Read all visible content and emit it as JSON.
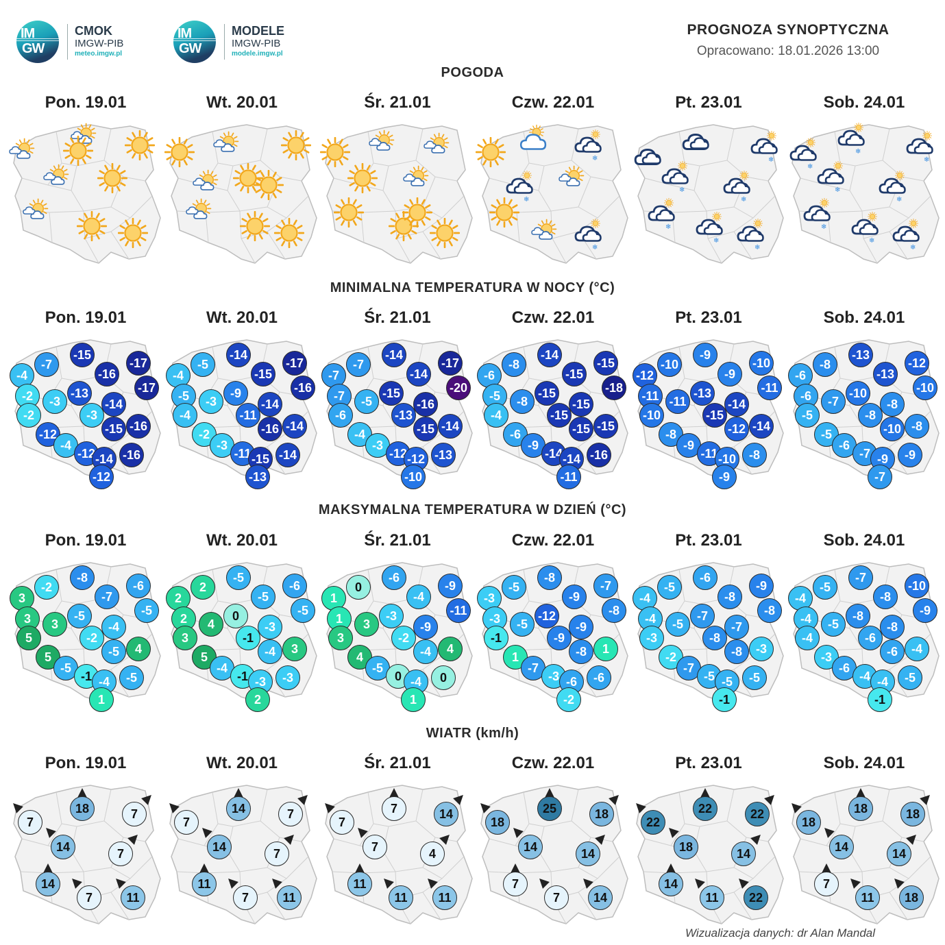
{
  "logos": {
    "cmok": {
      "circle_top": "IM",
      "circle_bottom": "GW",
      "title": "CMOK",
      "sub": "IMGW-PIB",
      "url": "meteo.imgw.pl"
    },
    "modele": {
      "circle_top": "IM",
      "circle_bottom": "GW",
      "title": "MODELE",
      "sub": "IMGW-PIB",
      "url": "modele.imgw.pl"
    }
  },
  "header": {
    "title": "PROGNOZA SYNOPTYCZNA",
    "prepared": "Opracowano: 18.01.2026 13:00"
  },
  "sections": {
    "weather": "POGODA",
    "tmin": "MINIMALNA TEMPERATURA W NOCY (°C)",
    "tmax": "MAKSYMALNA TEMPERATURA W DZIEŃ (°C)",
    "wind": "WIATR (km/h)"
  },
  "days": [
    "Pon. 19.01",
    "Wt. 20.01",
    "Śr. 21.01",
    "Czw. 22.01",
    "Pt. 23.01",
    "Sob. 24.01"
  ],
  "weather": [
    [
      "sun_cloud",
      "sun_cloud",
      "sun",
      "sun_cloud",
      "sun",
      "sun_cloud",
      "sun",
      "sun",
      "sun"
    ],
    [
      "sun",
      "sun_cloud",
      "sun",
      "sun_cloud",
      "sun",
      "sun_cloud",
      "sun",
      "sun",
      "sun"
    ],
    [
      "sun",
      "sun_cloud",
      "sun_cloud",
      "sun",
      "sun_cloud",
      "sun",
      "sun",
      "sun",
      "sun"
    ],
    [
      "sun",
      "cloud_sun_big",
      "cloud_snow",
      "sun_cloud",
      "cloud_snow",
      "sun",
      "sun_cloud",
      "cloud_snow"
    ],
    [
      "cloud_dark",
      "cloud_dark",
      "cloud_snow",
      "cloud_snow",
      "cloud_snow",
      "cloud_snow",
      "cloud_snow",
      "cloud_snow"
    ],
    [
      "cloud_snow",
      "cloud_snow",
      "cloud_snow",
      "cloud_snow",
      "cloud_snow",
      "cloud_snow",
      "cloud_snow",
      "cloud_snow"
    ]
  ],
  "tmin": [
    [
      "-4",
      "-7",
      "-15",
      "-16",
      "-17",
      "-17",
      "-2",
      "-3",
      "-13",
      "-14",
      "-2",
      "-3",
      "-12",
      "-4",
      "-15",
      "-16",
      "-12",
      "-14",
      "-16",
      "-12"
    ],
    [
      "-4",
      "-5",
      "-14",
      "-15",
      "-17",
      "-16",
      "-5",
      "-3",
      "-9",
      "-14",
      "-4",
      "-11",
      "-2",
      "-3",
      "-16",
      "-14",
      "-11",
      "-15",
      "-14",
      "-13"
    ],
    [
      "-7",
      "-7",
      "-14",
      "-14",
      "-17",
      "-20",
      "-7",
      "-5",
      "-15",
      "-16",
      "-6",
      "-13",
      "-4",
      "-3",
      "-15",
      "-14",
      "-12",
      "-12",
      "-13",
      "-10"
    ],
    [
      "-6",
      "-8",
      "-14",
      "-15",
      "-15",
      "-18",
      "-5",
      "-8",
      "-15",
      "-15",
      "-4",
      "-15",
      "-6",
      "-9",
      "-15",
      "-15",
      "-14",
      "-14",
      "-16",
      "-11"
    ],
    [
      "-12",
      "-10",
      "-9",
      "-9",
      "-10",
      "-11",
      "-11",
      "-11",
      "-13",
      "-14",
      "-10",
      "-15",
      "-8",
      "-9",
      "-12",
      "-14",
      "-11",
      "-10",
      "-8",
      "-9"
    ],
    [
      "-6",
      "-8",
      "-13",
      "-13",
      "-12",
      "-10",
      "-6",
      "-7",
      "-10",
      "-8",
      "-5",
      "-8",
      "-5",
      "-6",
      "-10",
      "-8",
      "-7",
      "-9",
      "-9",
      "-7"
    ]
  ],
  "tmax": [
    [
      "3",
      "-2",
      "-8",
      "-7",
      "-6",
      "-5",
      "3",
      "3",
      "-5",
      "-4",
      "5",
      "-2",
      "5",
      "-5",
      "-5",
      "4",
      "-1",
      "-4",
      "-5",
      "1"
    ],
    [
      "2",
      "2",
      "-5",
      "-5",
      "-6",
      "-5",
      "2",
      "4",
      "0",
      "-3",
      "3",
      "-1",
      "5",
      "-4",
      "-4",
      "3",
      "-1",
      "-3",
      "-3",
      "2"
    ],
    [
      "1",
      "0",
      "-6",
      "-4",
      "-9",
      "-11",
      "1",
      "3",
      "-3",
      "-9",
      "3",
      "-2",
      "4",
      "-5",
      "-4",
      "4",
      "0",
      "-4",
      "0",
      "1"
    ],
    [
      "-3",
      "-5",
      "-8",
      "-9",
      "-7",
      "-8",
      "-3",
      "-5",
      "-12",
      "-9",
      "-1",
      "-9",
      "1",
      "-7",
      "-8",
      "1",
      "-3",
      "-6",
      "-6",
      "-2"
    ],
    [
      "-4",
      "-5",
      "-6",
      "-8",
      "-9",
      "-8",
      "-4",
      "-5",
      "-7",
      "-7",
      "-3",
      "-8",
      "-2",
      "-7",
      "-8",
      "-3",
      "-5",
      "-5",
      "-5",
      "-1"
    ],
    [
      "-4",
      "-5",
      "-7",
      "-8",
      "-10",
      "-9",
      "-4",
      "-5",
      "-8",
      "-8",
      "-4",
      "-6",
      "-3",
      "-6",
      "-6",
      "-4",
      "-4",
      "-4",
      "-5",
      "-1"
    ]
  ],
  "wind": [
    [
      "7",
      "18",
      "7",
      "14",
      "7",
      "14",
      "7",
      "11"
    ],
    [
      "7",
      "14",
      "7",
      "14",
      "7",
      "11",
      "7",
      "11"
    ],
    [
      "7",
      "7",
      "14",
      "7",
      "4",
      "11",
      "11",
      "11"
    ],
    [
      "18",
      "25",
      "18",
      "14",
      "14",
      "7",
      "7",
      "14"
    ],
    [
      "22",
      "22",
      "22",
      "18",
      "14",
      "14",
      "11",
      "22"
    ],
    [
      "18",
      "18",
      "18",
      "14",
      "14",
      "7",
      "11",
      "18"
    ]
  ],
  "footer": "Wizualizacja danych: dr Alan Mandal"
}
